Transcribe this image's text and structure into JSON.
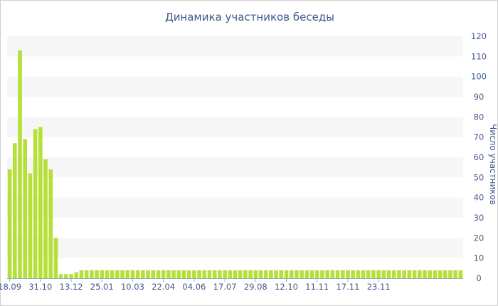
{
  "chart_data": {
    "type": "bar",
    "title": "Динамика участников беседы",
    "xlabel": "",
    "ylabel": "Число участников",
    "ylim": [
      0,
      120
    ],
    "yticks": [
      0,
      10,
      20,
      30,
      40,
      50,
      60,
      70,
      80,
      90,
      100,
      110,
      120
    ],
    "y_axis_side": "right",
    "grid": "alternating horizontal bands",
    "x_tick_labels": [
      "18.09",
      "31.10",
      "13.12",
      "25.01",
      "10.03",
      "22.04",
      "04.06",
      "17.07",
      "29.08",
      "12.10",
      "11.11",
      "17.11",
      "23.11"
    ],
    "x_tick_bar_index": [
      0,
      6,
      12,
      18,
      24,
      30,
      36,
      42,
      48,
      54,
      60,
      66,
      72
    ],
    "bar_color": "#b5e03a",
    "band_color": "#f6f6f6",
    "values": [
      54,
      67,
      113,
      69,
      52,
      74,
      75,
      59,
      54,
      20,
      2,
      2,
      2,
      3,
      4,
      4,
      4,
      4,
      4,
      4,
      4,
      4,
      4,
      4,
      4,
      4,
      4,
      4,
      4,
      4,
      4,
      4,
      4,
      4,
      4,
      4,
      4,
      4,
      4,
      4,
      4,
      4,
      4,
      4,
      4,
      4,
      4,
      4,
      4,
      4,
      4,
      4,
      4,
      4,
      4,
      4,
      4,
      4,
      4,
      4,
      4,
      4,
      4,
      4,
      4,
      4,
      4,
      4,
      4,
      4,
      4,
      4,
      4,
      4,
      4,
      4,
      4,
      4,
      4,
      4,
      4,
      4,
      4,
      4,
      4,
      4,
      4,
      4,
      4
    ]
  }
}
